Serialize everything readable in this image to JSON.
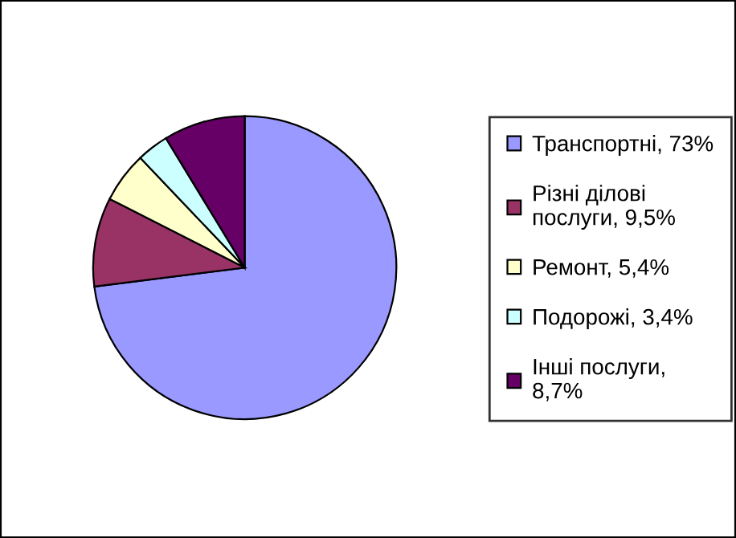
{
  "chart_data": {
    "type": "pie",
    "categories": [
      "Транспортні, 73%",
      "Різні ділові\nпослуги, 9,5%",
      "Ремонт, 5,4%",
      "Подорожі, 3,4%",
      "Інші послуги,\n8,7%"
    ],
    "values": [
      73,
      9.5,
      5.4,
      3.4,
      8.7
    ],
    "colors": [
      "#9999ff",
      "#993366",
      "#ffffcc",
      "#ccffff",
      "#660066"
    ],
    "legend": "right"
  }
}
